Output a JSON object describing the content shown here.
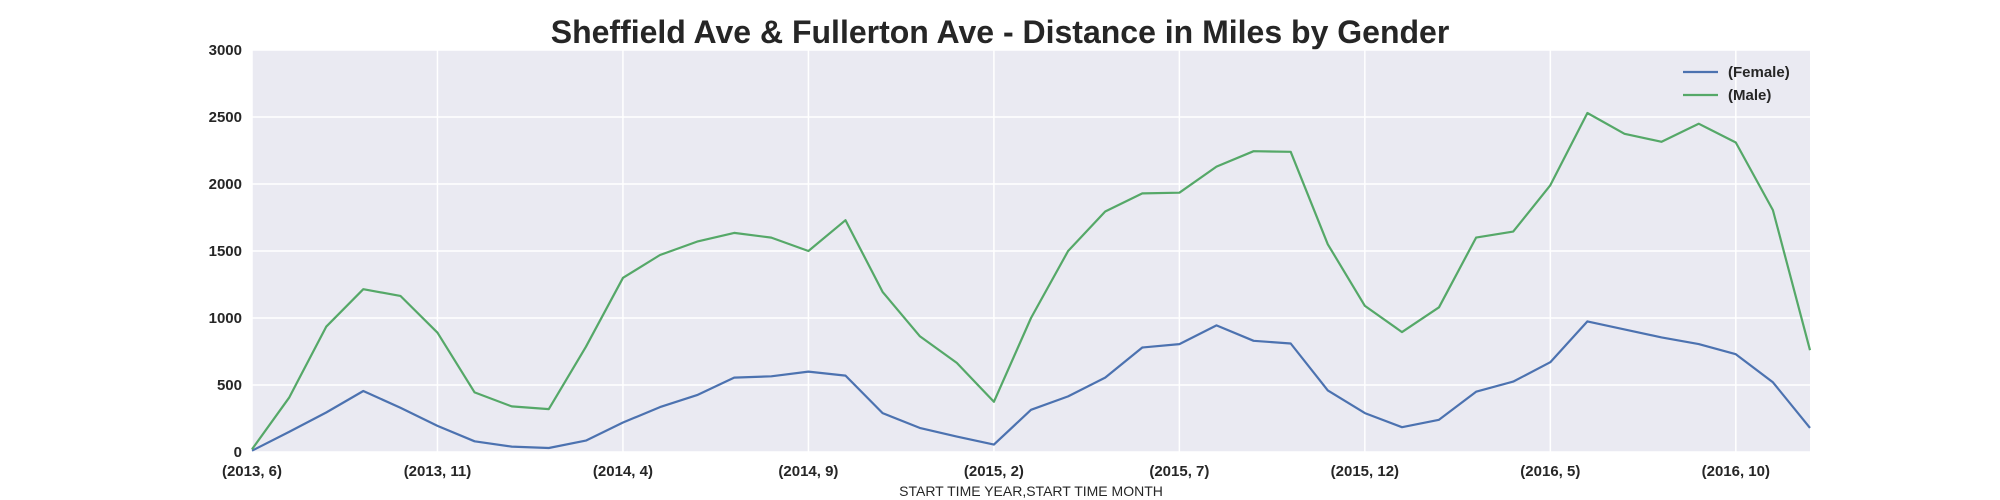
{
  "chart_data": {
    "type": "line",
    "title": "Sheffield Ave & Fullerton Ave - Distance in Miles by Gender",
    "xlabel": "START TIME YEAR,START TIME MONTH",
    "ylabel": "",
    "ylim": [
      0,
      3000
    ],
    "yticks": [
      0,
      500,
      1000,
      1500,
      2000,
      2500,
      3000
    ],
    "grid": true,
    "legend_position": "top-right",
    "x": [
      "(2013, 6)",
      "(2013, 7)",
      "(2013, 8)",
      "(2013, 9)",
      "(2013, 10)",
      "(2013, 11)",
      "(2013, 12)",
      "(2014, 1)",
      "(2014, 2)",
      "(2014, 3)",
      "(2014, 4)",
      "(2014, 5)",
      "(2014, 6)",
      "(2014, 7)",
      "(2014, 8)",
      "(2014, 9)",
      "(2014, 10)",
      "(2014, 11)",
      "(2014, 12)",
      "(2015, 1)",
      "(2015, 2)",
      "(2015, 3)",
      "(2015, 4)",
      "(2015, 5)",
      "(2015, 6)",
      "(2015, 7)",
      "(2015, 8)",
      "(2015, 9)",
      "(2015, 10)",
      "(2015, 11)",
      "(2015, 12)",
      "(2016, 1)",
      "(2016, 2)",
      "(2016, 3)",
      "(2016, 4)",
      "(2016, 5)",
      "(2016, 6)",
      "(2016, 7)",
      "(2016, 8)",
      "(2016, 9)",
      "(2016, 10)",
      "(2016, 11)",
      "(2016, 12)"
    ],
    "xtick_labels": [
      {
        "index": 0,
        "label": "(2013, 6)"
      },
      {
        "index": 5,
        "label": "(2013, 11)"
      },
      {
        "index": 10,
        "label": "(2014, 4)"
      },
      {
        "index": 15,
        "label": "(2014, 9)"
      },
      {
        "index": 20,
        "label": "(2015, 2)"
      },
      {
        "index": 25,
        "label": "(2015, 7)"
      },
      {
        "index": 30,
        "label": "(2015, 12)"
      },
      {
        "index": 35,
        "label": "(2016, 5)"
      },
      {
        "index": 40,
        "label": "(2016, 10)"
      }
    ],
    "series": [
      {
        "name": "(Female)",
        "color": "#4c72b0",
        "values": [
          10,
          150,
          295,
          455,
          330,
          195,
          80,
          40,
          30,
          85,
          220,
          335,
          425,
          555,
          565,
          600,
          570,
          290,
          180,
          115,
          55,
          315,
          415,
          555,
          780,
          805,
          945,
          830,
          810,
          460,
          290,
          185,
          240,
          450,
          525,
          670,
          975,
          915,
          855,
          805,
          730,
          520,
          180
        ]
      },
      {
        "name": "(Male)",
        "color": "#55a868",
        "values": [
          20,
          405,
          935,
          1215,
          1165,
          890,
          445,
          340,
          320,
          785,
          1300,
          1470,
          1570,
          1635,
          1600,
          1500,
          1730,
          1195,
          865,
          665,
          375,
          1000,
          1500,
          1795,
          1930,
          1935,
          2130,
          2245,
          2240,
          1550,
          1090,
          895,
          1080,
          1600,
          1645,
          1990,
          2530,
          2375,
          2315,
          2450,
          2310,
          1805,
          760
        ]
      }
    ]
  }
}
